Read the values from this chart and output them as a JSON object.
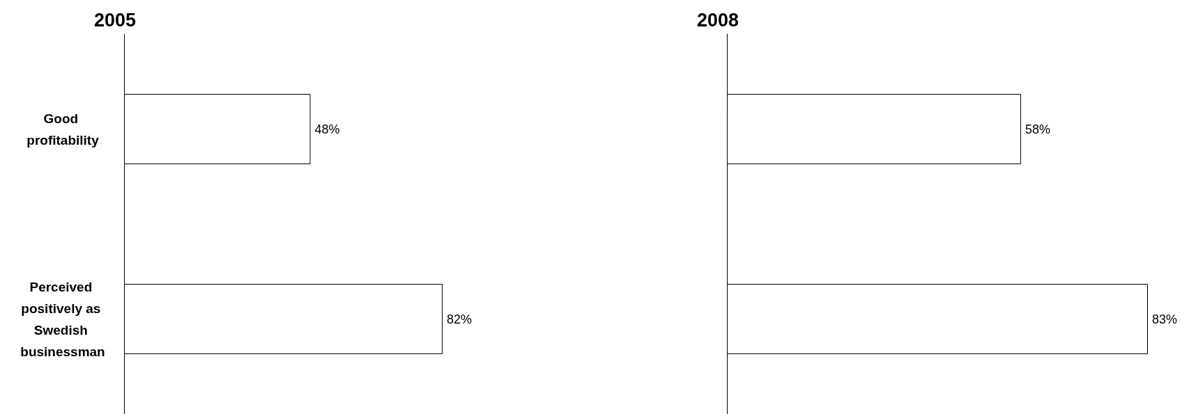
{
  "chart_data": [
    {
      "type": "bar",
      "title": "2005",
      "orientation": "horizontal",
      "categories": [
        "Good profitability",
        "Perceived positively as Swedish businessman"
      ],
      "values": [
        48,
        82
      ],
      "value_labels": [
        "48%",
        "82%"
      ],
      "color": "#ffffff",
      "tick_labels": "y"
    },
    {
      "type": "bar",
      "title": "2008",
      "orientation": "horizontal",
      "categories": [
        null,
        null
      ],
      "values": [
        58,
        83
      ],
      "value_labels": [
        "58%",
        "83%"
      ],
      "color": "#ffffff",
      "tick_labels": false
    }
  ]
}
